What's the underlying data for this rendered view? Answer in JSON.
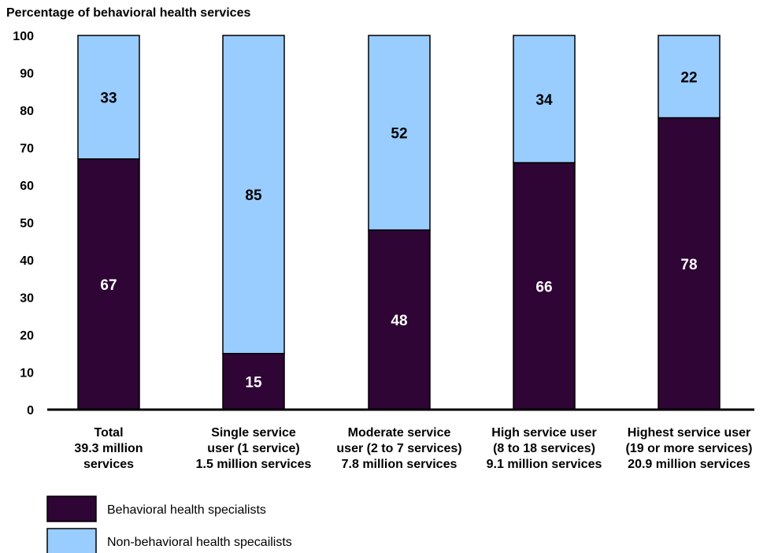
{
  "chart_data": {
    "type": "bar",
    "stacked": true,
    "title": "Percentage of behavioral health services",
    "xlabel": "",
    "ylabel": "",
    "ylim": [
      0,
      100
    ],
    "yticks": [
      0,
      10,
      20,
      30,
      40,
      50,
      60,
      70,
      80,
      90,
      100
    ],
    "grid": false,
    "legend_position": "bottom-left",
    "categories": [
      [
        "Total",
        "39.3 million",
        "services"
      ],
      [
        "Single service",
        "user (1 service)",
        "1.5 million services"
      ],
      [
        "Moderate service",
        "user (2 to 7 services)",
        "7.8 million services"
      ],
      [
        "High service user",
        "(8 to 18 services)",
        "9.1 million services"
      ],
      [
        "Highest service user",
        "(19 or more services)",
        "20.9 million services"
      ]
    ],
    "series": [
      {
        "name": "Behavioral health specialists",
        "color": "#2e0534",
        "label_color": "#ffffff",
        "values": [
          67,
          15,
          48,
          66,
          78
        ]
      },
      {
        "name": "Non-behavioral health specailists",
        "color": "#99ccff",
        "label_color": "#000000",
        "values": [
          33,
          85,
          52,
          34,
          22
        ]
      }
    ]
  }
}
